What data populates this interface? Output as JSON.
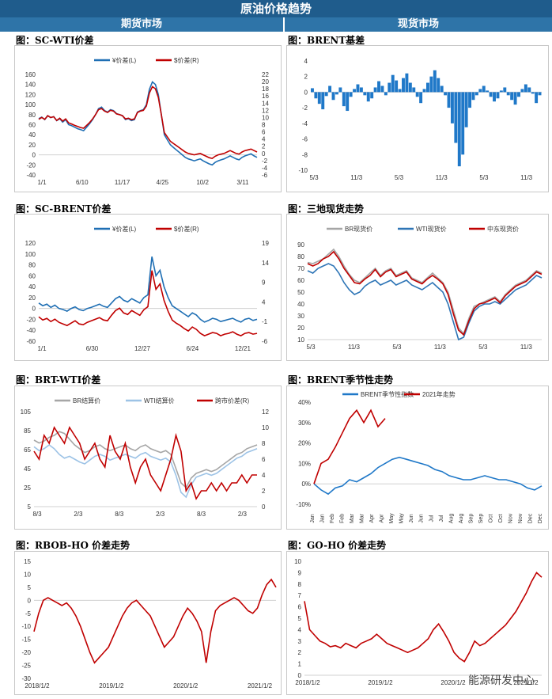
{
  "header": {
    "title": "原油价格趋势",
    "left_col": "期货市场",
    "right_col": "现货市场"
  },
  "watermark": "能源研发中心",
  "panels": [
    {
      "id": "sc-wti",
      "title": "图：SC-WTI价差"
    },
    {
      "id": "brent-basis",
      "title": "图：BRENT基差"
    },
    {
      "id": "sc-brent",
      "title": "图：SC-BRENT价差"
    },
    {
      "id": "three-spot",
      "title": "图：三地现货走势"
    },
    {
      "id": "brt-wti",
      "title": "图：BRT-WTI价差"
    },
    {
      "id": "brent-season",
      "title": "图：BRENT季节性走势"
    },
    {
      "id": "rbob-ho",
      "title": "图：RBOB-HO 价差走势"
    },
    {
      "id": "go-ho",
      "title": "图：GO-HO 价差走势"
    }
  ],
  "chart_data": [
    {
      "id": "sc-wti",
      "type": "line",
      "legend": [
        "¥价差(L)",
        "$价差(R)"
      ],
      "colors": [
        "#1f6fb4",
        "#c00000"
      ],
      "x_ticks": [
        "1/1",
        "6/10",
        "11/17",
        "4/25",
        "10/2",
        "3/11"
      ],
      "y_left": {
        "ticks": [
          -40,
          -20,
          0,
          20,
          40,
          60,
          80,
          100,
          120,
          140,
          160
        ],
        "range": [
          -40,
          160
        ]
      },
      "y_right": {
        "ticks": [
          -6,
          -4,
          -2,
          0,
          2,
          4,
          6,
          8,
          10,
          12,
          14,
          16,
          18,
          20,
          22
        ],
        "range": [
          -6,
          22
        ]
      },
      "series": [
        {
          "name": "¥价差(L)",
          "values": [
            72,
            75,
            70,
            78,
            74,
            76,
            68,
            72,
            65,
            70,
            60,
            58,
            55,
            52,
            50,
            48,
            55,
            62,
            70,
            80,
            92,
            95,
            88,
            85,
            90,
            88,
            82,
            80,
            78,
            70,
            72,
            68,
            70,
            85,
            88,
            90,
            100,
            130,
            145,
            140,
            120,
            80,
            40,
            30,
            20,
            15,
            10,
            5,
            0,
            -5,
            -8,
            -10,
            -12,
            -10,
            -8,
            -12,
            -15,
            -18,
            -20,
            -15,
            -12,
            -10,
            -8,
            -5,
            -2,
            -5,
            -8,
            -10,
            -5,
            -2,
            0,
            2,
            -2,
            -5
          ]
        },
        {
          "name": "$价差(R)",
          "values": [
            9.5,
            10,
            9.5,
            10.5,
            10,
            10.2,
            9.2,
            9.8,
            9,
            9.6,
            8.5,
            8.2,
            7.8,
            7.5,
            7.2,
            7,
            7.8,
            8.6,
            9.6,
            10.8,
            12.2,
            12.5,
            11.8,
            11.4,
            12,
            11.8,
            11,
            10.8,
            10.5,
            9.6,
            9.8,
            9.4,
            9.6,
            11.4,
            11.8,
            12,
            13.2,
            16.8,
            18.6,
            18,
            15.6,
            10.8,
            5.8,
            4.6,
            3.4,
            2.8,
            2.2,
            1.6,
            1,
            0.4,
            0,
            -0.2,
            -0.4,
            -0.2,
            0,
            -0.4,
            -0.8,
            -1.2,
            -1.4,
            -0.8,
            -0.4,
            -0.2,
            0,
            0.4,
            0.8,
            0.4,
            0,
            -0.2,
            0.4,
            0.8,
            1,
            1.2,
            0.8,
            0.4
          ]
        }
      ]
    },
    {
      "id": "brent-basis",
      "type": "bar",
      "x_ticks": [
        "5/3",
        "11/3",
        "5/3",
        "11/3",
        "5/3",
        "11/3"
      ],
      "y": {
        "ticks": [
          -10,
          -8,
          -6,
          -4,
          -2,
          0,
          2,
          4
        ],
        "range": [
          -10,
          4.5
        ]
      },
      "colors": [
        "#1f78c8"
      ],
      "series": [
        {
          "name": "",
          "values": [
            0.5,
            -0.8,
            -1.5,
            -2.2,
            -0.5,
            0.8,
            -1,
            -0.3,
            0.6,
            -1.8,
            -2.4,
            -0.6,
            0.4,
            1,
            0.6,
            -0.4,
            -1.2,
            -0.8,
            0.6,
            1.4,
            0.8,
            -0.4,
            1.2,
            2.2,
            1.5,
            0.4,
            1.8,
            2.4,
            1.2,
            0.6,
            -0.6,
            -1.4,
            0.4,
            1.2,
            2,
            2.8,
            1.8,
            0.8,
            -0.4,
            -2,
            -4,
            -6.5,
            -9.5,
            -8,
            -4.5,
            -2,
            -1,
            -0.4,
            0.4,
            0.8,
            0.2,
            -0.6,
            -1.2,
            -0.8,
            0.2,
            0.6,
            -0.4,
            -1,
            -1.6,
            -0.6,
            0.4,
            1,
            0.6,
            -0.2,
            -1.4,
            -0.4
          ]
        }
      ]
    },
    {
      "id": "sc-brent",
      "type": "line",
      "legend": [
        "¥价差(L)",
        "$价差(R)"
      ],
      "colors": [
        "#1f6fb4",
        "#c00000"
      ],
      "x_ticks": [
        "1/1",
        "6/30",
        "12/27",
        "6/24",
        "12/21"
      ],
      "y_left": {
        "ticks": [
          -60,
          -40,
          -20,
          0,
          20,
          40,
          60,
          80,
          100,
          120
        ],
        "range": [
          -60,
          120
        ]
      },
      "y_right": {
        "ticks": [
          -6,
          -1,
          4,
          9,
          14,
          19
        ],
        "range": [
          -6,
          19
        ]
      },
      "series": [
        {
          "name": "¥价差(L)",
          "values": [
            10,
            5,
            8,
            2,
            6,
            0,
            -2,
            -5,
            0,
            3,
            -2,
            -4,
            0,
            2,
            5,
            8,
            4,
            2,
            10,
            18,
            22,
            15,
            12,
            18,
            14,
            10,
            20,
            25,
            95,
            60,
            70,
            40,
            20,
            5,
            0,
            -5,
            -10,
            -15,
            -8,
            -12,
            -20,
            -25,
            -22,
            -18,
            -20,
            -24,
            -22,
            -20,
            -18,
            -22,
            -25,
            -20,
            -18,
            -22,
            -20
          ]
        },
        {
          "name": "$价差(R)",
          "values": [
            0.2,
            -0.6,
            -0.2,
            -1,
            -0.4,
            -1.2,
            -1.6,
            -2,
            -1.4,
            -0.8,
            -1.6,
            -1.8,
            -1.2,
            -0.8,
            -0.4,
            0,
            -0.6,
            -0.8,
            0.6,
            1.8,
            2.4,
            1.2,
            0.8,
            1.8,
            1.2,
            0.6,
            2,
            2.8,
            12,
            7.2,
            8.6,
            4.4,
            1.6,
            -0.6,
            -1.4,
            -2,
            -2.8,
            -3.4,
            -2.4,
            -3,
            -4,
            -4.6,
            -4.2,
            -3.8,
            -4,
            -4.6,
            -4.2,
            -4,
            -3.6,
            -4.2,
            -4.6,
            -4,
            -3.8,
            -4.2,
            -4
          ]
        }
      ]
    },
    {
      "id": "three-spot",
      "type": "line",
      "legend": [
        "BR现货价",
        "WTI现货价",
        "中东现货价"
      ],
      "colors": [
        "#a6a6a6",
        "#2e75b6",
        "#c00000"
      ],
      "x_ticks": [
        "5/3",
        "11/3",
        "5/3",
        "11/3",
        "5/3",
        "11/3"
      ],
      "y": {
        "ticks": [
          10,
          20,
          30,
          40,
          50,
          60,
          70,
          80,
          90
        ],
        "range": [
          10,
          90
        ]
      },
      "series": [
        {
          "name": "BR现货价",
          "values": [
            75,
            74,
            76,
            78,
            82,
            86,
            80,
            72,
            65,
            60,
            58,
            62,
            66,
            70,
            64,
            68,
            70,
            64,
            66,
            68,
            62,
            60,
            58,
            62,
            66,
            62,
            58,
            50,
            35,
            20,
            15,
            28,
            38,
            40,
            42,
            44,
            46,
            42,
            48,
            52,
            56,
            58,
            60,
            64,
            68,
            66
          ]
        },
        {
          "name": "WTI现货价",
          "values": [
            68,
            66,
            70,
            72,
            74,
            72,
            66,
            58,
            52,
            48,
            50,
            55,
            58,
            60,
            56,
            58,
            60,
            56,
            58,
            60,
            56,
            54,
            52,
            55,
            58,
            54,
            50,
            40,
            25,
            10,
            12,
            24,
            34,
            38,
            40,
            40,
            42,
            40,
            44,
            48,
            52,
            54,
            56,
            60,
            64,
            62
          ]
        },
        {
          "name": "中东现货价",
          "values": [
            74,
            72,
            74,
            78,
            80,
            84,
            78,
            70,
            64,
            58,
            57,
            61,
            64,
            69,
            63,
            67,
            69,
            63,
            65,
            67,
            61,
            59,
            57,
            61,
            64,
            61,
            57,
            48,
            32,
            18,
            14,
            26,
            36,
            40,
            41,
            43,
            45,
            41,
            47,
            51,
            55,
            57,
            59,
            63,
            67,
            65
          ]
        }
      ]
    },
    {
      "id": "brt-wti",
      "type": "line",
      "legend": [
        "BR结算价",
        "WTI结算价",
        "跨市价差(R)"
      ],
      "colors": [
        "#a6a6a6",
        "#9dc3e6",
        "#c00000"
      ],
      "x_ticks": [
        "8/3",
        "2/3",
        "8/3",
        "2/3",
        "8/3",
        "2/3"
      ],
      "y_left": {
        "ticks": [
          5,
          25,
          45,
          65,
          85,
          105
        ],
        "range": [
          5,
          105
        ]
      },
      "y_right": {
        "ticks": [
          0,
          2,
          4,
          6,
          8,
          10,
          12
        ],
        "range": [
          0,
          12
        ]
      },
      "series": [
        {
          "name": "BR结算价",
          "values": [
            75,
            72,
            74,
            78,
            80,
            84,
            82,
            76,
            70,
            66,
            62,
            64,
            68,
            70,
            66,
            64,
            66,
            68,
            70,
            66,
            64,
            68,
            70,
            66,
            64,
            62,
            64,
            60,
            45,
            30,
            25,
            35,
            40,
            42,
            44,
            42,
            44,
            48,
            52,
            56,
            60,
            62,
            66,
            68,
            70
          ]
        },
        {
          "name": "WTI结算价",
          "values": [
            68,
            64,
            66,
            70,
            66,
            60,
            56,
            58,
            55,
            52,
            50,
            54,
            58,
            60,
            58,
            54,
            56,
            58,
            60,
            58,
            56,
            60,
            62,
            58,
            56,
            54,
            56,
            52,
            38,
            20,
            15,
            28,
            36,
            38,
            40,
            38,
            40,
            44,
            48,
            52,
            56,
            58,
            62,
            64,
            66
          ]
        },
        {
          "name": "跨市价差(R)",
          "values": [
            7,
            6,
            9,
            8,
            10,
            9,
            8,
            10,
            9,
            8,
            6,
            7,
            8,
            6,
            5,
            9,
            7,
            6,
            8,
            5,
            3,
            5,
            6,
            4,
            3,
            2,
            4,
            6,
            9,
            7,
            2,
            3,
            1,
            2,
            2,
            3,
            2,
            3,
            2,
            3,
            3,
            4,
            3,
            4,
            4
          ]
        }
      ]
    },
    {
      "id": "brent-season",
      "type": "line",
      "legend": [
        "BRENT季节性指数",
        "2021年走势"
      ],
      "colors": [
        "#1f78c8",
        "#c00000"
      ],
      "x_ticks": [
        "Jan",
        "Jan",
        "Feb",
        "Feb",
        "Mar",
        "Mar",
        "Apr",
        "Apr",
        "May",
        "May",
        "Jun",
        "Jun",
        "Jul",
        "Jul",
        "Aug",
        "Aug",
        "Sep",
        "Sep",
        "Oct",
        "Oct",
        "Nov",
        "Nov",
        "Dec",
        "Dec"
      ],
      "y": {
        "ticks": [
          "-10%",
          "0%",
          "10%",
          "20%",
          "30%",
          "40%"
        ],
        "range": [
          -10,
          40
        ]
      },
      "series": [
        {
          "name": "BRENT季节性指数",
          "values": [
            0,
            -3,
            -5,
            -2,
            -1,
            2,
            1,
            3,
            5,
            8,
            10,
            12,
            13,
            12,
            11,
            10,
            9,
            7,
            6,
            4,
            3,
            2,
            2,
            3,
            4,
            3,
            2,
            2,
            1,
            0,
            -2,
            -3,
            -1
          ]
        },
        {
          "name": "2021年走势",
          "values": [
            0,
            10,
            12,
            18,
            25,
            32,
            36,
            30,
            36,
            28,
            32
          ]
        }
      ]
    },
    {
      "id": "rbob-ho",
      "type": "line",
      "colors": [
        "#c00000"
      ],
      "x_ticks": [
        "2018/1/2",
        "2019/1/2",
        "2020/1/2",
        "2021/1/2"
      ],
      "y": {
        "ticks": [
          -30,
          -25,
          -20,
          -15,
          -10,
          -5,
          0,
          5,
          10,
          15
        ],
        "range": [
          -30,
          15
        ]
      },
      "series": [
        {
          "name": "",
          "values": [
            -12,
            -5,
            0,
            1,
            0,
            -1,
            -2,
            -1,
            -3,
            -6,
            -10,
            -15,
            -20,
            -24,
            -22,
            -20,
            -18,
            -14,
            -10,
            -6,
            -3,
            -1,
            0,
            -2,
            -4,
            -6,
            -10,
            -14,
            -18,
            -16,
            -14,
            -10,
            -6,
            -3,
            -5,
            -8,
            -12,
            -24,
            -12,
            -4,
            -2,
            -1,
            0,
            1,
            0,
            -2,
            -4,
            -5,
            -3,
            2,
            6,
            8,
            5
          ]
        }
      ]
    },
    {
      "id": "go-ho",
      "type": "line",
      "colors": [
        "#c00000"
      ],
      "x_ticks": [
        "2018/1/2",
        "2019/1/2",
        "2020/1/2",
        "2021/1/2"
      ],
      "y": {
        "ticks": [
          0,
          1,
          2,
          3,
          4,
          5,
          6,
          7,
          8,
          9,
          10
        ],
        "range": [
          0,
          10
        ]
      },
      "series": [
        {
          "name": "",
          "values": [
            6.5,
            4,
            3.5,
            3,
            2.8,
            2.5,
            2.6,
            2.4,
            2.8,
            2.6,
            2.4,
            2.8,
            3,
            3.2,
            3.6,
            3.2,
            2.8,
            2.6,
            2.4,
            2.2,
            2,
            2.2,
            2.4,
            2.8,
            3.2,
            4,
            4.5,
            3.8,
            3,
            2,
            1.5,
            1.2,
            2,
            3,
            2.6,
            2.8,
            3.2,
            3.6,
            4,
            4.4,
            5,
            5.6,
            6.4,
            7.2,
            8.2,
            9,
            8.6
          ]
        }
      ]
    }
  ]
}
